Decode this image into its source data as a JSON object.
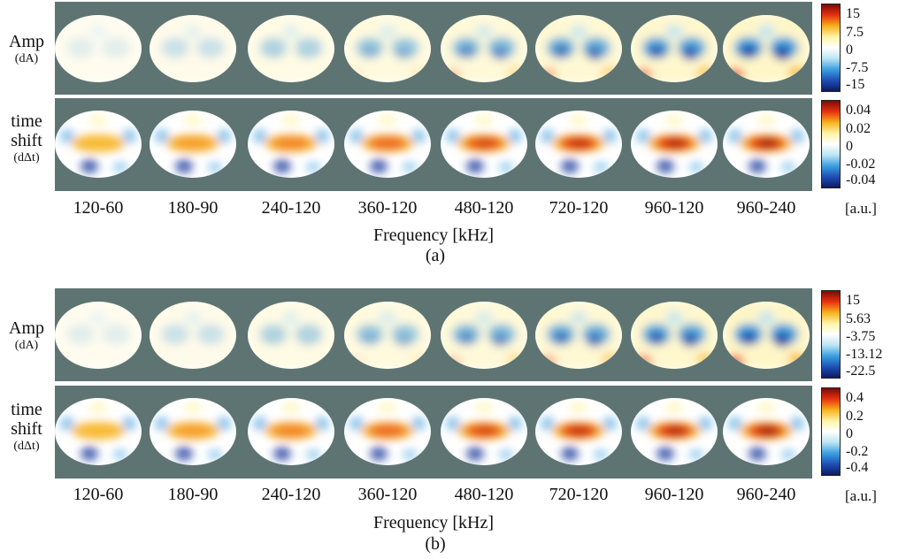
{
  "panels": [
    {
      "id": "a",
      "label": "(a)",
      "amp_label": "Amp",
      "amp_sub": "(dA)",
      "ts_label_1": "time",
      "ts_label_2": "shift",
      "ts_sub": "(dΔt)",
      "amp_ticks": [
        "15",
        "7.5",
        "0",
        "-7.5",
        "-15"
      ],
      "ts_ticks": [
        "0.04",
        "0.02",
        "0",
        "-0.02",
        "-0.04"
      ],
      "unit": "[a.u.]",
      "xlabel": "Frequency [kHz]",
      "frequencies": [
        "120-60",
        "180-90",
        "240-120",
        "360-120",
        "480-120",
        "720-120",
        "960-120",
        "960-240"
      ]
    },
    {
      "id": "b",
      "label": "(b)",
      "amp_label": "Amp",
      "amp_sub": "(dA)",
      "ts_label_1": "time",
      "ts_label_2": "shift",
      "ts_sub": "(dΔt)",
      "amp_ticks": [
        "15",
        "5.63",
        "-3.75",
        "-13.12",
        "-22.5"
      ],
      "ts_ticks": [
        "0.4",
        "0.2",
        "0",
        "-0.2",
        "-0.4"
      ],
      "unit": "[a.u.]",
      "xlabel": "Frequency [kHz]",
      "frequencies": [
        "120-60",
        "180-90",
        "240-120",
        "360-120",
        "480-120",
        "720-120",
        "960-120",
        "960-240"
      ]
    }
  ],
  "colormap": [
    "#0d1a63",
    "#1f4fb5",
    "#3aa0e0",
    "#bde4f4",
    "#ffffff",
    "#fff3a8",
    "#f7b21e",
    "#e8320e",
    "#7a0a0a"
  ]
}
